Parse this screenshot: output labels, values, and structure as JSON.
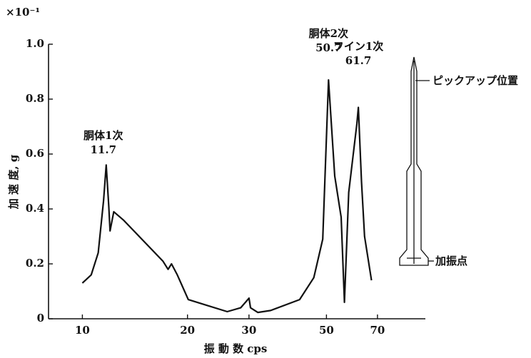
{
  "chart_data": {
    "type": "line",
    "y_multiplier": "×10⁻¹",
    "ylabel": "加 速 度, g",
    "xlabel": "振 動 数 cps",
    "log_x": true,
    "xlim": [
      8,
      96
    ],
    "ylim": [
      0,
      1
    ],
    "xticks": [
      10,
      20,
      30,
      50,
      70
    ],
    "yticks": [
      0,
      0.2,
      0.4,
      0.6,
      0.8,
      {
        "value": 1,
        "label": "1.0"
      }
    ],
    "color": "#111111",
    "x": [
      10,
      10.6,
      11.1,
      11.5,
      11.7,
      11.9,
      12.0,
      12.3,
      13.1,
      14.8,
      17.0,
      17.6,
      18.0,
      18.7,
      20.1,
      22.6,
      26.0,
      28.4,
      30,
      30.3,
      31.8,
      34.6,
      41.9,
      46,
      48.8,
      50.7,
      52.8,
      55.1,
      56.3,
      57.9,
      61.1,
      61.7,
      63.0,
      64.3,
      67.3
    ],
    "values": [
      0.13,
      0.16,
      0.24,
      0.43,
      0.56,
      0.41,
      0.32,
      0.39,
      0.36,
      0.29,
      0.21,
      0.18,
      0.2,
      0.16,
      0.07,
      0.05,
      0.026,
      0.04,
      0.075,
      0.04,
      0.023,
      0.03,
      0.07,
      0.15,
      0.29,
      0.87,
      0.52,
      0.37,
      0.06,
      0.46,
      0.71,
      0.77,
      0.5,
      0.3,
      0.14
    ],
    "annotations": [
      {
        "text": "胴体1次",
        "x": 11.7
      },
      {
        "text": "胴体2次",
        "x": 50.7
      },
      {
        "text": "フイン1次",
        "x": 61.7
      }
    ],
    "diagram_labels": {
      "pickup": "ピックアップ位置",
      "excitation": "加振点"
    }
  }
}
